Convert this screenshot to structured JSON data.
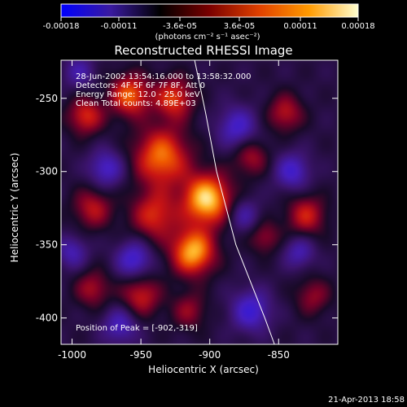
{
  "colorbar": {
    "tick_labels": [
      "-0.00018",
      "-0.00011",
      "-3.6e-05",
      "3.6e-05",
      "0.00011",
      "0.00018"
    ],
    "tick_values": [
      -0.00018,
      -0.00011,
      -3.6e-05,
      3.6e-05,
      0.00011,
      0.00018
    ],
    "range": [
      -0.00018,
      0.00018
    ],
    "units_label": "(photons cm⁻² s⁻¹ asec⁻²)",
    "colors": [
      "#0000ff",
      "#3a1aa0",
      "#000000",
      "#7a0000",
      "#e04000",
      "#ff9a00",
      "#ffffd0"
    ]
  },
  "chart_data": {
    "type": "heatmap",
    "title": "Reconstructed RHESSI Image",
    "xlabel": "Heliocentric X (arcsec)",
    "ylabel": "Heliocentric Y (arcsec)",
    "xlim": [
      -1008,
      -807
    ],
    "ylim": [
      -418,
      -224
    ],
    "x_ticks": [
      -1000,
      -950,
      -900,
      -850
    ],
    "x_tick_labels": [
      "-1000",
      "-950",
      "-900",
      "-850"
    ],
    "y_ticks": [
      -250,
      -300,
      -350,
      -400
    ],
    "y_tick_labels": [
      "-250",
      "-300",
      "-350",
      "-400"
    ],
    "annotations": {
      "time": "28-Jun-2002 13:54:16.000 to 13:58:32.000",
      "detectors": "Detectors: 4F 5F 6F 7F 8F, Att 0",
      "energy": "Energy Range: 12.0 - 25.0 keV",
      "clean": "Clean    Total counts: 4.89E+03",
      "peak": "Position of Peak = [-902,-319]"
    },
    "peak_position": [
      -902,
      -319
    ],
    "limb": [
      [
        -911,
        -224
      ],
      [
        -903,
        -260
      ],
      [
        -895,
        -300
      ],
      [
        -881,
        -350
      ],
      [
        -860,
        -400
      ],
      [
        -853,
        -418
      ]
    ],
    "blobs": [
      {
        "x": -902,
        "y": -319,
        "amp": 1.0,
        "r": 12
      },
      {
        "x": -912,
        "y": -355,
        "amp": 0.9,
        "r": 11
      },
      {
        "x": -935,
        "y": -290,
        "amp": 0.75,
        "r": 14
      },
      {
        "x": -958,
        "y": -248,
        "amp": 0.7,
        "r": 10
      },
      {
        "x": -990,
        "y": -262,
        "amp": 0.55,
        "r": 9
      },
      {
        "x": -926,
        "y": -250,
        "amp": 0.6,
        "r": 10
      },
      {
        "x": -940,
        "y": -330,
        "amp": 0.55,
        "r": 12
      },
      {
        "x": -985,
        "y": -325,
        "amp": 0.45,
        "r": 10
      },
      {
        "x": -985,
        "y": -380,
        "amp": 0.4,
        "r": 9
      },
      {
        "x": -950,
        "y": -385,
        "amp": 0.5,
        "r": 10
      },
      {
        "x": -915,
        "y": -395,
        "amp": 0.35,
        "r": 9
      },
      {
        "x": -870,
        "y": -290,
        "amp": 0.4,
        "r": 9
      },
      {
        "x": -845,
        "y": -260,
        "amp": 0.45,
        "r": 9
      },
      {
        "x": -830,
        "y": -330,
        "amp": 0.5,
        "r": 10
      },
      {
        "x": -860,
        "y": -345,
        "amp": 0.35,
        "r": 8
      },
      {
        "x": -825,
        "y": -385,
        "amp": 0.35,
        "r": 9
      },
      {
        "x": -975,
        "y": -298,
        "amp": -0.5,
        "r": 9
      },
      {
        "x": -955,
        "y": -360,
        "amp": -0.55,
        "r": 9
      },
      {
        "x": -965,
        "y": -405,
        "amp": -0.45,
        "r": 9
      },
      {
        "x": -880,
        "y": -270,
        "amp": -0.5,
        "r": 10
      },
      {
        "x": -840,
        "y": -300,
        "amp": -0.5,
        "r": 9
      },
      {
        "x": -870,
        "y": -395,
        "amp": -0.55,
        "r": 10
      },
      {
        "x": -835,
        "y": -355,
        "amp": -0.4,
        "r": 8
      },
      {
        "x": -1000,
        "y": -355,
        "amp": -0.4,
        "r": 8
      },
      {
        "x": -875,
        "y": -330,
        "amp": -0.35,
        "r": 8
      },
      {
        "x": -995,
        "y": -232,
        "amp": -0.35,
        "r": 8
      }
    ]
  },
  "footer": {
    "timestamp": "21-Apr-2013 18:58"
  }
}
